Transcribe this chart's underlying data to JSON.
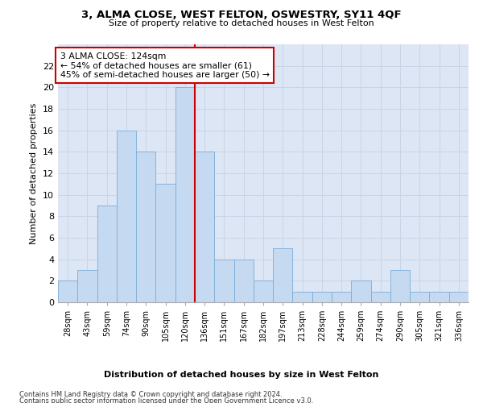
{
  "title": "3, ALMA CLOSE, WEST FELTON, OSWESTRY, SY11 4QF",
  "subtitle": "Size of property relative to detached houses in West Felton",
  "xlabel": "Distribution of detached houses by size in West Felton",
  "ylabel": "Number of detached properties",
  "bar_values": [
    2,
    3,
    9,
    16,
    14,
    11,
    20,
    14,
    4,
    4,
    2,
    5,
    1,
    1,
    1,
    2,
    1,
    3,
    1,
    1,
    1
  ],
  "bar_labels": [
    "28sqm",
    "43sqm",
    "59sqm",
    "74sqm",
    "90sqm",
    "105sqm",
    "120sqm",
    "136sqm",
    "151sqm",
    "167sqm",
    "182sqm",
    "197sqm",
    "213sqm",
    "228sqm",
    "244sqm",
    "259sqm",
    "274sqm",
    "290sqm",
    "305sqm",
    "321sqm",
    "336sqm"
  ],
  "bar_color": "#c5d9f0",
  "bar_edgecolor": "#7aadda",
  "vline_x": 6.5,
  "vline_color": "#cc0000",
  "annotation_text": "3 ALMA CLOSE: 124sqm\n← 54% of detached houses are smaller (61)\n45% of semi-detached houses are larger (50) →",
  "annotation_box_color": "#ffffff",
  "annotation_box_edgecolor": "#cc0000",
  "ylim_max": 24,
  "yticks": [
    0,
    2,
    4,
    6,
    8,
    10,
    12,
    14,
    16,
    18,
    20,
    22
  ],
  "grid_color": "#c8d4e8",
  "background_color": "#dce6f4",
  "footnote1": "Contains HM Land Registry data © Crown copyright and database right 2024.",
  "footnote2": "Contains public sector information licensed under the Open Government Licence v3.0."
}
